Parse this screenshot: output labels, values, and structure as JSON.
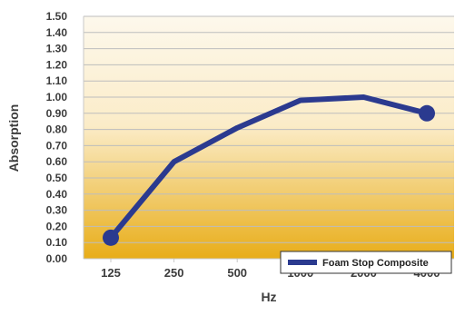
{
  "chart_data": {
    "type": "line",
    "title": "",
    "xlabel": "Hz",
    "ylabel": "Absorption",
    "categories": [
      "125",
      "250",
      "500",
      "1000",
      "2000",
      "4000"
    ],
    "series": [
      {
        "name": "Foam Stop Composite",
        "values": [
          0.13,
          0.6,
          0.81,
          0.98,
          1.0,
          0.9
        ],
        "color": "#2b3a8f"
      }
    ],
    "ylim": [
      0.0,
      1.5
    ],
    "yticks": [
      "0.00",
      "0.10",
      "0.20",
      "0.30",
      "0.40",
      "0.50",
      "0.60",
      "0.70",
      "0.80",
      "0.90",
      "1.00",
      "1.10",
      "1.20",
      "1.30",
      "1.40",
      "1.50"
    ],
    "grid": true,
    "legend_position": "bottom-right",
    "background_gradient": [
      "#fdf8ec",
      "#e8ad18"
    ]
  }
}
